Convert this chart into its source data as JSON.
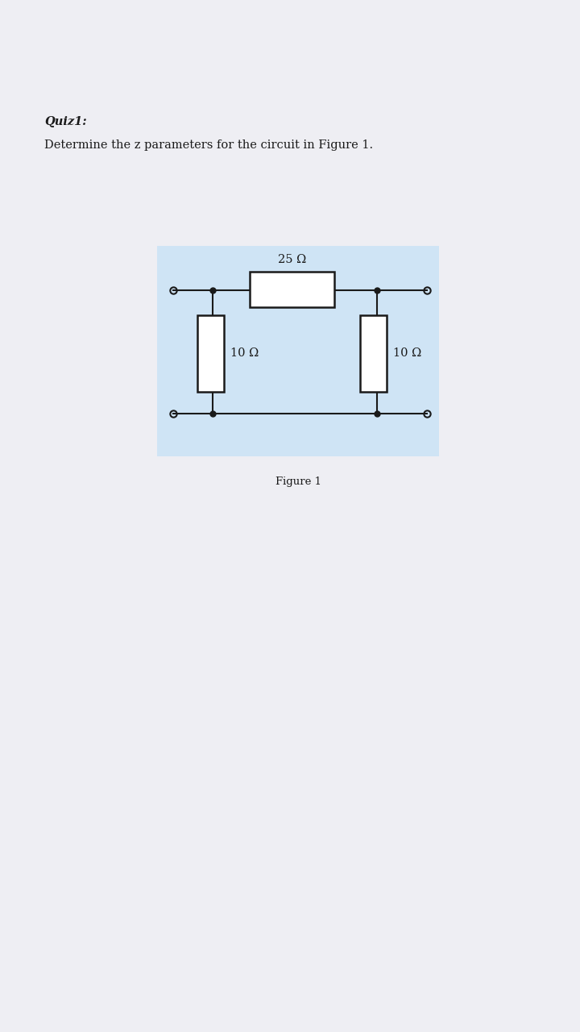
{
  "page_bg": "#eeeef3",
  "paper_bg": "#ffffff",
  "circuit_bg": "#cfe4f5",
  "title": "Quiz1:",
  "subtitle": "Determine the z parameters for the circuit in Figure 1.",
  "figure_label": "Figure 1",
  "title_fontsize": 10.5,
  "subtitle_fontsize": 10.5,
  "figure_label_fontsize": 9.5,
  "resistor_25_label": "25 Ω",
  "resistor_10L_label": "10 Ω",
  "resistor_10R_label": "10 Ω",
  "line_color": "#1a1a1a",
  "line_width": 1.5,
  "resistor_fill": "#ffffff",
  "dot_color": "#1a1a1a",
  "dot_size": 5,
  "terminal_size": 6
}
